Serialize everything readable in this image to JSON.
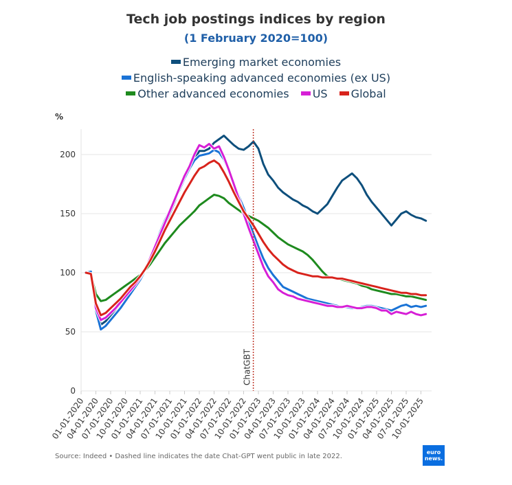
{
  "chart_data": {
    "type": "line",
    "title": "Tech job postings indices by region",
    "subtitle": "(1 February 2020=100)",
    "ylabel": "%",
    "xlabel": "",
    "ylim": [
      0,
      220
    ],
    "yticks": [
      0,
      50,
      100,
      150,
      200
    ],
    "grid": true,
    "legend_position": "top",
    "x_start": "2020-01",
    "x_unit": "month",
    "xtick_labels": [
      "01-01-2020",
      "04-01-2020",
      "07-01-2020",
      "10-01-2020",
      "01-01-2021",
      "04-01-2021",
      "07-01-2021",
      "10-01-2021",
      "01-01-2022",
      "04-01-2022",
      "07-01-2022",
      "10-01-2022",
      "01-01-2023",
      "04-01-2023",
      "07-01-2023",
      "10-01-2023",
      "01-01-2024",
      "04-01-2024",
      "07-01-2024",
      "10-01-2024",
      "01-01-2025",
      "04-01-2025",
      "07-01-2025",
      "10-01-2025"
    ],
    "x": [
      "2020-02",
      "2020-03",
      "2020-04",
      "2020-05",
      "2020-06",
      "2020-07",
      "2020-08",
      "2020-09",
      "2020-10",
      "2020-11",
      "2020-12",
      "2021-01",
      "2021-02",
      "2021-03",
      "2021-04",
      "2021-05",
      "2021-06",
      "2021-07",
      "2021-08",
      "2021-09",
      "2021-10",
      "2021-11",
      "2021-12",
      "2022-01",
      "2022-02",
      "2022-03",
      "2022-04",
      "2022-05",
      "2022-06",
      "2022-07",
      "2022-08",
      "2022-09",
      "2022-10",
      "2022-11",
      "2022-12",
      "2023-01",
      "2023-02",
      "2023-03",
      "2023-04",
      "2023-05",
      "2023-06",
      "2023-07",
      "2023-08",
      "2023-09",
      "2023-10",
      "2023-11",
      "2023-12",
      "2024-01",
      "2024-02",
      "2024-03",
      "2024-04",
      "2024-05",
      "2024-06",
      "2024-07",
      "2024-08",
      "2024-09",
      "2024-10",
      "2024-11",
      "2024-12",
      "2025-01",
      "2025-02",
      "2025-03",
      "2025-04",
      "2025-05",
      "2025-06",
      "2025-07",
      "2025-08",
      "2025-09",
      "2025-10",
      "2025-11"
    ],
    "series": [
      {
        "name": "Emerging market economies",
        "color": "#0e4f7c",
        "values": [
          100,
          101,
          72,
          56,
          59,
          64,
          69,
          74,
          79,
          84,
          89,
          95,
          102,
          111,
          120,
          130,
          140,
          150,
          160,
          170,
          180,
          188,
          196,
          203,
          203,
          205,
          210,
          213,
          216,
          212,
          208,
          205,
          204,
          207,
          211,
          205,
          192,
          183,
          178,
          172,
          168,
          165,
          162,
          160,
          157,
          155,
          152,
          150,
          154,
          158,
          165,
          172,
          178,
          181,
          184,
          180,
          174,
          166,
          160,
          155,
          150,
          145,
          140,
          145,
          150,
          152,
          149,
          147,
          146,
          144
        ]
      },
      {
        "name": "English-speaking advanced economies (ex US)",
        "color": "#1a73d6",
        "values": [
          100,
          101,
          68,
          52,
          55,
          60,
          65,
          70,
          76,
          82,
          88,
          94,
          102,
          112,
          123,
          134,
          144,
          153,
          162,
          170,
          180,
          188,
          195,
          199,
          200,
          201,
          204,
          202,
          196,
          186,
          176,
          165,
          155,
          144,
          133,
          122,
          112,
          104,
          98,
          93,
          88,
          86,
          84,
          82,
          80,
          78,
          77,
          76,
          75,
          74,
          73,
          72,
          71,
          71,
          70,
          70,
          71,
          72,
          72,
          71,
          70,
          69,
          68,
          70,
          72,
          73,
          71,
          72,
          71,
          72
        ]
      },
      {
        "name": "Other advanced economies",
        "color": "#1e8a1e",
        "values": [
          100,
          99,
          82,
          76,
          77,
          80,
          83,
          86,
          89,
          92,
          95,
          98,
          102,
          107,
          113,
          119,
          125,
          130,
          135,
          140,
          144,
          148,
          152,
          157,
          160,
          163,
          166,
          165,
          163,
          159,
          156,
          153,
          150,
          148,
          146,
          144,
          141,
          138,
          134,
          130,
          127,
          124,
          122,
          120,
          118,
          115,
          111,
          106,
          101,
          97,
          96,
          95,
          94,
          93,
          92,
          91,
          89,
          88,
          86,
          85,
          84,
          83,
          82,
          82,
          81,
          80,
          80,
          79,
          78,
          77
        ]
      },
      {
        "name": "US",
        "color": "#d61fd6",
        "values": [
          100,
          99,
          70,
          60,
          62,
          66,
          70,
          75,
          80,
          85,
          90,
          96,
          103,
          112,
          122,
          132,
          142,
          152,
          162,
          172,
          182,
          190,
          200,
          208,
          206,
          209,
          205,
          207,
          198,
          187,
          175,
          163,
          150,
          138,
          127,
          116,
          105,
          97,
          92,
          86,
          83,
          81,
          80,
          78,
          77,
          76,
          75,
          74,
          73,
          72,
          72,
          71,
          71,
          72,
          71,
          70,
          70,
          71,
          71,
          70,
          68,
          68,
          65,
          67,
          66,
          65,
          67,
          65,
          64,
          65
        ]
      },
      {
        "name": "Global",
        "color": "#d8231c",
        "values": [
          100,
          99,
          74,
          64,
          66,
          70,
          74,
          78,
          83,
          88,
          92,
          97,
          103,
          110,
          118,
          127,
          136,
          144,
          152,
          160,
          168,
          175,
          182,
          188,
          190,
          193,
          195,
          192,
          185,
          177,
          168,
          160,
          152,
          146,
          140,
          133,
          126,
          120,
          115,
          111,
          107,
          104,
          102,
          100,
          99,
          98,
          97,
          97,
          96,
          96,
          96,
          95,
          95,
          94,
          93,
          92,
          91,
          90,
          89,
          88,
          87,
          86,
          85,
          84,
          83,
          83,
          82,
          82,
          81,
          81
        ]
      }
    ],
    "annotations": [
      {
        "type": "vline",
        "x": "2022-11-30",
        "label": "ChatGBT",
        "style": "dashed",
        "color": "#c0392b"
      }
    ]
  },
  "legend": {
    "row1": [
      {
        "label": "Emerging market economies",
        "color": "#0e4f7c"
      }
    ],
    "row2": [
      {
        "label": "English-speaking advanced economies (ex US)",
        "color": "#1a73d6"
      }
    ],
    "row3": [
      {
        "label": "Other advanced economies",
        "color": "#1e8a1e"
      },
      {
        "label": "US",
        "color": "#d61fd6"
      },
      {
        "label": "Global",
        "color": "#d8231c"
      }
    ]
  },
  "footer": {
    "source": "Source: Indeed • Dashed line indicates the date Chat-GPT went public in late 2022.",
    "logo_line1": "euro",
    "logo_line2": "news."
  }
}
